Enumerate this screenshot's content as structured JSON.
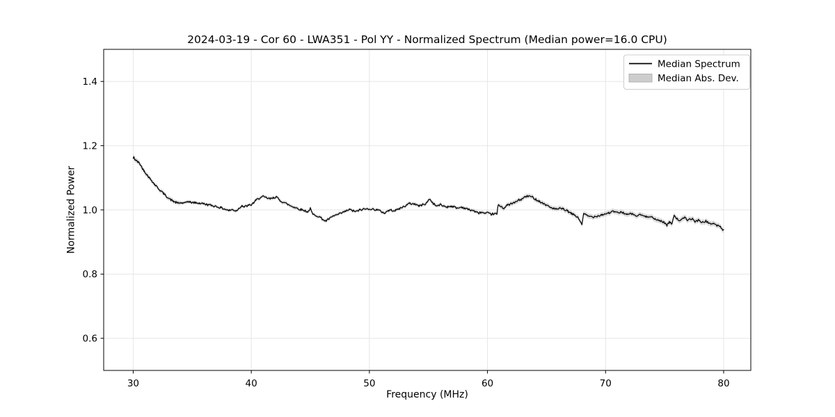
{
  "figure": {
    "background_color": "#ffffff",
    "frame_color": "#000000",
    "grid_color": "#e6e6e6"
  },
  "chart_data": {
    "type": "line",
    "title": "2024-03-19 - Cor 60 - LWA351 - Pol YY - Normalized Spectrum (Median power=16.0 CPU)",
    "xlabel": "Frequency (MHz)",
    "ylabel": "Normalized Power",
    "xlim": [
      27.5,
      82.3
    ],
    "ylim": [
      0.5,
      1.5
    ],
    "x_ticks": [
      30,
      40,
      50,
      60,
      70,
      80
    ],
    "x_tick_labels": [
      "30",
      "40",
      "50",
      "60",
      "70",
      "80"
    ],
    "y_ticks": [
      0.6,
      0.8,
      1.0,
      1.2,
      1.4
    ],
    "y_tick_labels": [
      "0.6",
      "0.8",
      "1.0",
      "1.2",
      "1.4"
    ],
    "grid": true,
    "legend": {
      "position": "upper right",
      "entries": [
        {
          "label": "Median Spectrum",
          "type": "line",
          "color": "#000000"
        },
        {
          "label": "Median Abs. Dev.",
          "type": "patch",
          "color": "#cdcdcd",
          "edge_color": "#adadad"
        }
      ]
    },
    "series": [
      {
        "name": "Median Spectrum",
        "type": "line",
        "color": "#000000",
        "points": [
          [
            30.0,
            1.16
          ],
          [
            30.05,
            1.166
          ],
          [
            30.1,
            1.158
          ],
          [
            30.2,
            1.156
          ],
          [
            30.3,
            1.152
          ],
          [
            30.4,
            1.149
          ],
          [
            30.5,
            1.146
          ],
          [
            30.6,
            1.141
          ],
          [
            30.7,
            1.135
          ],
          [
            30.8,
            1.128
          ],
          [
            30.9,
            1.123
          ],
          [
            31.0,
            1.118
          ],
          [
            31.1,
            1.113
          ],
          [
            31.2,
            1.108
          ],
          [
            31.3,
            1.103
          ],
          [
            31.4,
            1.098
          ],
          [
            31.5,
            1.094
          ],
          [
            31.6,
            1.09
          ],
          [
            31.7,
            1.085
          ],
          [
            31.8,
            1.08
          ],
          [
            31.9,
            1.076
          ],
          [
            32.0,
            1.072
          ],
          [
            32.2,
            1.064
          ],
          [
            32.4,
            1.057
          ],
          [
            32.6,
            1.05
          ],
          [
            32.8,
            1.043
          ],
          [
            33.0,
            1.036
          ],
          [
            33.2,
            1.031
          ],
          [
            33.4,
            1.027
          ],
          [
            33.6,
            1.023
          ],
          [
            33.8,
            1.021
          ],
          [
            34.0,
            1.022
          ],
          [
            34.2,
            1.021
          ],
          [
            34.4,
            1.021
          ],
          [
            34.6,
            1.027
          ],
          [
            34.8,
            1.024
          ],
          [
            35.0,
            1.023
          ],
          [
            35.3,
            1.022
          ],
          [
            35.6,
            1.021
          ],
          [
            36.0,
            1.019
          ],
          [
            36.3,
            1.016
          ],
          [
            36.6,
            1.014
          ],
          [
            37.0,
            1.011
          ],
          [
            37.4,
            1.007
          ],
          [
            37.8,
            1.002
          ],
          [
            38.1,
            0.998
          ],
          [
            38.4,
            1.001
          ],
          [
            38.7,
            0.997
          ],
          [
            39.0,
            1.006
          ],
          [
            39.2,
            1.014
          ],
          [
            39.4,
            1.009
          ],
          [
            39.6,
            1.012
          ],
          [
            39.8,
            1.014
          ],
          [
            40.0,
            1.016
          ],
          [
            40.2,
            1.022
          ],
          [
            40.4,
            1.03
          ],
          [
            40.7,
            1.037
          ],
          [
            41.0,
            1.041
          ],
          [
            41.3,
            1.037
          ],
          [
            41.6,
            1.034
          ],
          [
            41.9,
            1.038
          ],
          [
            42.1,
            1.041
          ],
          [
            42.4,
            1.03
          ],
          [
            42.7,
            1.024
          ],
          [
            43.0,
            1.019
          ],
          [
            43.3,
            1.013
          ],
          [
            43.6,
            1.009
          ],
          [
            43.9,
            1.005
          ],
          [
            44.2,
            1.001
          ],
          [
            44.5,
            0.998
          ],
          [
            44.8,
            0.994
          ],
          [
            45.0,
            1.004
          ],
          [
            45.2,
            0.986
          ],
          [
            45.5,
            0.983
          ],
          [
            45.8,
            0.978
          ],
          [
            46.0,
            0.972
          ],
          [
            46.3,
            0.965
          ],
          [
            46.6,
            0.972
          ],
          [
            47.0,
            0.982
          ],
          [
            47.4,
            0.986
          ],
          [
            47.7,
            0.991
          ],
          [
            48.0,
            0.996
          ],
          [
            48.3,
            1.001
          ],
          [
            48.6,
            0.997
          ],
          [
            48.9,
            0.995
          ],
          [
            49.2,
            1.0
          ],
          [
            49.5,
            1.002
          ],
          [
            49.8,
            1.003
          ],
          [
            50.0,
            1.004
          ],
          [
            50.3,
            1.002
          ],
          [
            50.6,
            1.001
          ],
          [
            51.0,
            0.995
          ],
          [
            51.3,
            0.99
          ],
          [
            51.6,
            0.998
          ],
          [
            51.9,
            0.999
          ],
          [
            52.2,
            0.998
          ],
          [
            52.6,
            1.005
          ],
          [
            53.0,
            1.012
          ],
          [
            53.4,
            1.02
          ],
          [
            53.9,
            1.018
          ],
          [
            54.2,
            1.012
          ],
          [
            54.5,
            1.016
          ],
          [
            54.8,
            1.02
          ],
          [
            55.1,
            1.034
          ],
          [
            55.4,
            1.02
          ],
          [
            55.7,
            1.012
          ],
          [
            56.0,
            1.016
          ],
          [
            56.3,
            1.012
          ],
          [
            56.6,
            1.009
          ],
          [
            56.9,
            1.012
          ],
          [
            57.2,
            1.009
          ],
          [
            57.5,
            1.005
          ],
          [
            57.8,
            1.009
          ],
          [
            58.1,
            1.005
          ],
          [
            58.4,
            1.001
          ],
          [
            58.8,
            0.998
          ],
          [
            59.2,
            0.99
          ],
          [
            59.5,
            0.993
          ],
          [
            59.8,
            0.988
          ],
          [
            60.0,
            0.99
          ],
          [
            60.3,
            0.986
          ],
          [
            60.5,
            0.988
          ],
          [
            60.8,
            0.987
          ],
          [
            60.9,
            1.014
          ],
          [
            61.1,
            1.012
          ],
          [
            61.4,
            1.005
          ],
          [
            61.7,
            1.015
          ],
          [
            62.0,
            1.019
          ],
          [
            62.3,
            1.022
          ],
          [
            62.6,
            1.03
          ],
          [
            62.9,
            1.033
          ],
          [
            63.2,
            1.041
          ],
          [
            63.5,
            1.043
          ],
          [
            63.8,
            1.04
          ],
          [
            64.1,
            1.033
          ],
          [
            64.4,
            1.027
          ],
          [
            64.7,
            1.02
          ],
          [
            65.0,
            1.015
          ],
          [
            65.3,
            1.008
          ],
          [
            65.6,
            1.005
          ],
          [
            65.8,
            1.002
          ],
          [
            66.1,
            1.004
          ],
          [
            66.4,
            1.003
          ],
          [
            66.8,
            0.996
          ],
          [
            67.1,
            0.988
          ],
          [
            67.4,
            0.984
          ],
          [
            67.7,
            0.974
          ],
          [
            68.0,
            0.956
          ],
          [
            68.15,
            0.988
          ],
          [
            68.5,
            0.981
          ],
          [
            68.9,
            0.978
          ],
          [
            69.3,
            0.981
          ],
          [
            69.7,
            0.985
          ],
          [
            70.0,
            0.988
          ],
          [
            70.3,
            0.991
          ],
          [
            70.7,
            0.995
          ],
          [
            71.0,
            0.991
          ],
          [
            71.4,
            0.993
          ],
          [
            71.8,
            0.985
          ],
          [
            72.2,
            0.988
          ],
          [
            72.6,
            0.981
          ],
          [
            73.0,
            0.985
          ],
          [
            73.4,
            0.978
          ],
          [
            73.8,
            0.981
          ],
          [
            74.2,
            0.97
          ],
          [
            74.6,
            0.967
          ],
          [
            75.0,
            0.96
          ],
          [
            75.2,
            0.952
          ],
          [
            75.4,
            0.962
          ],
          [
            75.6,
            0.956
          ],
          [
            75.8,
            0.984
          ],
          [
            76.1,
            0.97
          ],
          [
            76.4,
            0.967
          ],
          [
            76.7,
            0.977
          ],
          [
            77.0,
            0.967
          ],
          [
            77.3,
            0.973
          ],
          [
            77.6,
            0.963
          ],
          [
            77.9,
            0.969
          ],
          [
            78.2,
            0.96
          ],
          [
            78.5,
            0.966
          ],
          [
            78.8,
            0.956
          ],
          [
            79.1,
            0.959
          ],
          [
            79.4,
            0.952
          ],
          [
            79.7,
            0.948
          ],
          [
            80.0,
            0.936
          ]
        ]
      },
      {
        "name": "Median Abs. Dev.",
        "type": "band",
        "color": "#c3c3c3",
        "opacity": 0.65,
        "halfwidth_segments": [
          {
            "from": 27.5,
            "to": 31.5,
            "hw": 0.0075
          },
          {
            "from": 31.5,
            "to": 34.0,
            "hw": 0.0065
          },
          {
            "from": 34.0,
            "to": 40.0,
            "hw": 0.005
          },
          {
            "from": 40.0,
            "to": 46.5,
            "hw": 0.0055
          },
          {
            "from": 46.5,
            "to": 53.0,
            "hw": 0.005
          },
          {
            "from": 53.0,
            "to": 61.0,
            "hw": 0.0055
          },
          {
            "from": 61.0,
            "to": 66.0,
            "hw": 0.007
          },
          {
            "from": 66.0,
            "to": 74.0,
            "hw": 0.0075
          },
          {
            "from": 74.0,
            "to": 82.5,
            "hw": 0.008
          }
        ]
      }
    ],
    "noise": {
      "amplitude": 0.0032,
      "samples_per_mhz": 14,
      "seed": 42
    }
  }
}
